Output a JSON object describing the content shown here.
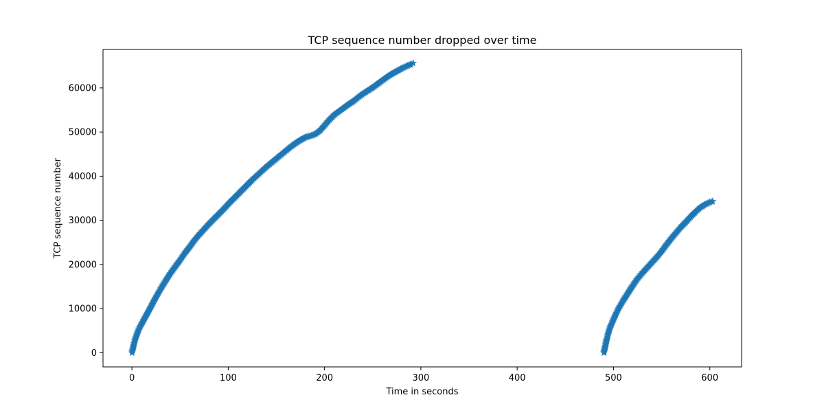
{
  "chart_data": {
    "type": "scatter",
    "title": "TCP sequence number dropped over time",
    "xlabel": "Time in seconds",
    "ylabel": "TCP sequence number",
    "xlim": [
      -30,
      633
    ],
    "ylim": [
      -3200,
      68700
    ],
    "xticks": [
      0,
      100,
      200,
      300,
      400,
      500,
      600
    ],
    "xtick_labels": [
      "0",
      "100",
      "200",
      "300",
      "400",
      "500",
      "600"
    ],
    "yticks": [
      0,
      10000,
      20000,
      30000,
      40000,
      50000,
      60000
    ],
    "ytick_labels": [
      "0",
      "10000",
      "20000",
      "30000",
      "40000",
      "50000",
      "60000"
    ],
    "grid": false,
    "marker": "star",
    "series": [
      {
        "color": "#1f77b4",
        "x": [
          0,
          1,
          2,
          3,
          5,
          7,
          10,
          15,
          20,
          25,
          30,
          35,
          40,
          45,
          50,
          55,
          60,
          65,
          70,
          75,
          80,
          85,
          90,
          95,
          100,
          105,
          110,
          115,
          120,
          125,
          130,
          135,
          140,
          145,
          150,
          155,
          160,
          165,
          170,
          175,
          180,
          185,
          190,
          195,
          200,
          205,
          210,
          215,
          220,
          225,
          230,
          235,
          240,
          245,
          250,
          255,
          260,
          265,
          270,
          275,
          280,
          285,
          290,
          292
        ],
        "y": [
          0,
          800,
          1800,
          2700,
          4000,
          5200,
          6500,
          8500,
          10500,
          12600,
          14500,
          16300,
          18000,
          19500,
          21000,
          22600,
          24000,
          25500,
          26800,
          28000,
          29200,
          30300,
          31400,
          32500,
          33700,
          34800,
          35900,
          37000,
          38100,
          39200,
          40200,
          41200,
          42200,
          43100,
          44000,
          44900,
          45800,
          46700,
          47500,
          48200,
          48800,
          49100,
          49500,
          50300,
          51500,
          52800,
          53900,
          54700,
          55500,
          56300,
          57000,
          57900,
          58700,
          59400,
          60100,
          60900,
          61700,
          62500,
          63200,
          63800,
          64400,
          64900,
          65400,
          65600
        ]
      },
      {
        "color": "#1f77b4",
        "x": [
          490,
          491,
          492,
          493,
          494,
          495,
          497,
          500,
          503,
          506,
          510,
          515,
          520,
          525,
          530,
          535,
          540,
          545,
          550,
          555,
          560,
          565,
          570,
          575,
          580,
          585,
          590,
          595,
          600,
          603
        ],
        "y": [
          0,
          1000,
          2000,
          3000,
          3900,
          4700,
          6000,
          7500,
          9000,
          10300,
          11800,
          13500,
          15200,
          16800,
          18100,
          19300,
          20500,
          21700,
          23000,
          24500,
          25900,
          27200,
          28500,
          29600,
          30800,
          31900,
          32900,
          33600,
          34100,
          34300
        ]
      }
    ]
  }
}
